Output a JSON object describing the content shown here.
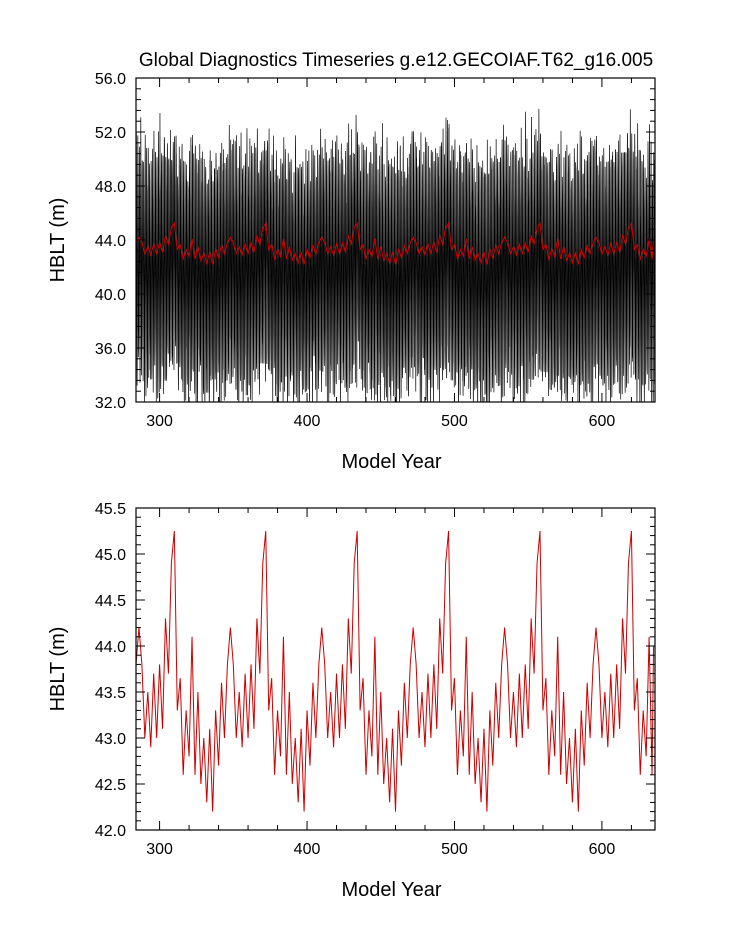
{
  "title": "Global Diagnostics Timeseries g.e12.GECOIAF.T62_g16.005",
  "chart_data": [
    {
      "type": "line",
      "xlabel": "Model Year",
      "ylabel": "HBLT (m)",
      "xlim": [
        284,
        636
      ],
      "ylim": [
        32.0,
        56.0
      ],
      "xticks": [
        300,
        400,
        500,
        600
      ],
      "xtick_labels": [
        "300",
        "400",
        "500",
        "600"
      ],
      "yticks": [
        32,
        36,
        40,
        44,
        48,
        52,
        56
      ],
      "ytick_labels": [
        "32.0",
        "36.0",
        "40.0",
        "44.0",
        "48.0",
        "52.0",
        "56.0"
      ],
      "grid": false,
      "series": [
        {
          "color": "#000000",
          "kind": "monthly",
          "note_values": "seasonal oscillation about the annual mean, amplitude ~ 9 m (peaks ~52-55 m, troughs ~35-38 m)"
        },
        {
          "color": "#cc0000",
          "kind": "annual_mean"
        }
      ]
    },
    {
      "type": "line",
      "xlabel": "Model Year",
      "ylabel": "HBLT (m)",
      "xlim": [
        284,
        636
      ],
      "ylim": [
        42.0,
        45.5
      ],
      "xticks": [
        300,
        400,
        500,
        600
      ],
      "xtick_labels": [
        "300",
        "400",
        "500",
        "600"
      ],
      "yticks": [
        42.0,
        42.5,
        43.0,
        43.5,
        44.0,
        44.5,
        45.0,
        45.5
      ],
      "ytick_labels": [
        "42.0",
        "42.5",
        "43.0",
        "43.5",
        "44.0",
        "44.5",
        "45.0",
        "45.5"
      ],
      "grid": false,
      "series": [
        {
          "color": "#cc0000",
          "kind": "annual_mean",
          "cycle_length_years": 62,
          "cycle_start_year": 290,
          "cycle_keypoints": [
            [
              0,
              43.0
            ],
            [
              2,
              43.5
            ],
            [
              4,
              42.9
            ],
            [
              6,
              43.7
            ],
            [
              8,
              43.0
            ],
            [
              10,
              43.8
            ],
            [
              12,
              43.1
            ],
            [
              14,
              44.3
            ],
            [
              16,
              43.7
            ],
            [
              18,
              44.9
            ],
            [
              20,
              45.25
            ],
            [
              22,
              43.3
            ],
            [
              24,
              43.65
            ],
            [
              26,
              42.6
            ],
            [
              28,
              43.3
            ],
            [
              30,
              42.8
            ],
            [
              32,
              44.1
            ],
            [
              34,
              42.6
            ],
            [
              36,
              43.5
            ],
            [
              38,
              42.5
            ],
            [
              40,
              43.0
            ],
            [
              42,
              42.3
            ],
            [
              44,
              43.1
            ],
            [
              46,
              42.2
            ],
            [
              48,
              43.3
            ],
            [
              50,
              42.7
            ],
            [
              52,
              43.6
            ],
            [
              54,
              43.0
            ],
            [
              56,
              43.8
            ],
            [
              58,
              44.2
            ],
            [
              60,
              43.8
            ],
            [
              62,
              43.0
            ]
          ],
          "end_year": 636,
          "end_value": 44.0
        }
      ]
    }
  ]
}
